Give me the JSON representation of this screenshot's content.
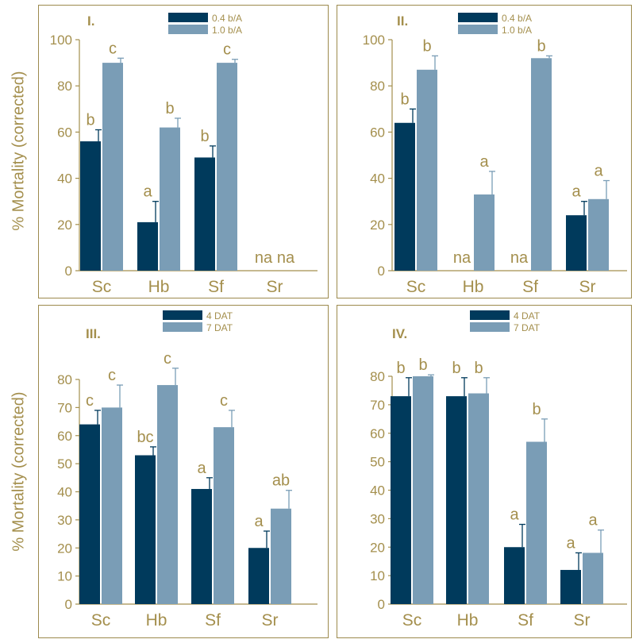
{
  "colors": {
    "dark_bar": "#003a5c",
    "light_bar": "#7a9db6",
    "label": "#a48f4d",
    "frame": "#9c8a4d"
  },
  "y_axis_label": "% Mortality (corrected)",
  "chart_data": [
    {
      "type": "bar",
      "panel_label": "I.",
      "categories": [
        "Sc",
        "Hb",
        "Sf",
        "Sr"
      ],
      "ylim": [
        0,
        100
      ],
      "yticks": [
        0,
        20,
        40,
        60,
        80,
        100
      ],
      "ylabel": "% Mortality (corrected)",
      "legend_position": "top-center",
      "series": [
        {
          "name": "0.4 b/A",
          "values": [
            56,
            21,
            49,
            0
          ],
          "errors": [
            5,
            9,
            5,
            0
          ],
          "letters": [
            "b",
            "a",
            "b",
            "na"
          ]
        },
        {
          "name": "1.0 b/A",
          "values": [
            90,
            62,
            90,
            0
          ],
          "errors": [
            2,
            4,
            1.5,
            0
          ],
          "letters": [
            "c",
            "b",
            "c",
            "na"
          ]
        }
      ]
    },
    {
      "type": "bar",
      "panel_label": "II.",
      "categories": [
        "Sc",
        "Hb",
        "Sf",
        "Sr"
      ],
      "ylim": [
        0,
        100
      ],
      "yticks": [
        0,
        20,
        40,
        60,
        80,
        100
      ],
      "ylabel": "",
      "legend_position": "top-center",
      "series": [
        {
          "name": "0.4 b/A",
          "values": [
            64,
            0,
            0,
            24
          ],
          "errors": [
            6,
            0,
            0,
            6
          ],
          "letters": [
            "b",
            "na",
            "na",
            "a"
          ]
        },
        {
          "name": "1.0 b/A",
          "values": [
            87,
            33,
            92,
            31
          ],
          "errors": [
            6,
            10,
            1,
            8
          ],
          "letters": [
            "b",
            "a",
            "b",
            "a"
          ]
        }
      ]
    },
    {
      "type": "bar",
      "panel_label": "III.",
      "categories": [
        "Sc",
        "Hb",
        "Sf",
        "Sr"
      ],
      "ylim": [
        0,
        80
      ],
      "yticks": [
        0,
        10,
        20,
        30,
        40,
        50,
        60,
        70,
        80
      ],
      "ylabel": "% Mortality (corrected)",
      "legend_position": "top-center",
      "series": [
        {
          "name": "4 DAT",
          "values": [
            64,
            53,
            41,
            20
          ],
          "errors": [
            5,
            3,
            4,
            6
          ],
          "letters": [
            "c",
            "bc",
            "a",
            "a"
          ]
        },
        {
          "name": "7 DAT",
          "values": [
            70,
            78,
            63,
            34
          ],
          "errors": [
            8,
            6,
            6,
            6.5
          ],
          "letters": [
            "c",
            "c",
            "c",
            "ab"
          ]
        }
      ]
    },
    {
      "type": "bar",
      "panel_label": "IV.",
      "categories": [
        "Sc",
        "Hb",
        "Sf",
        "Sr"
      ],
      "ylim": [
        0,
        80
      ],
      "yticks": [
        0,
        10,
        20,
        30,
        40,
        50,
        60,
        70,
        80
      ],
      "ylabel": "",
      "legend_position": "top-center",
      "series": [
        {
          "name": "4 DAT",
          "values": [
            73,
            73,
            20,
            12
          ],
          "errors": [
            6.5,
            6.5,
            8,
            6
          ],
          "letters": [
            "b",
            "b",
            "a",
            "a"
          ]
        },
        {
          "name": "7 DAT",
          "values": [
            80,
            74,
            57,
            18
          ],
          "errors": [
            0.5,
            5.5,
            8,
            8
          ],
          "letters": [
            "b",
            "b",
            "b",
            "a"
          ]
        }
      ]
    }
  ]
}
